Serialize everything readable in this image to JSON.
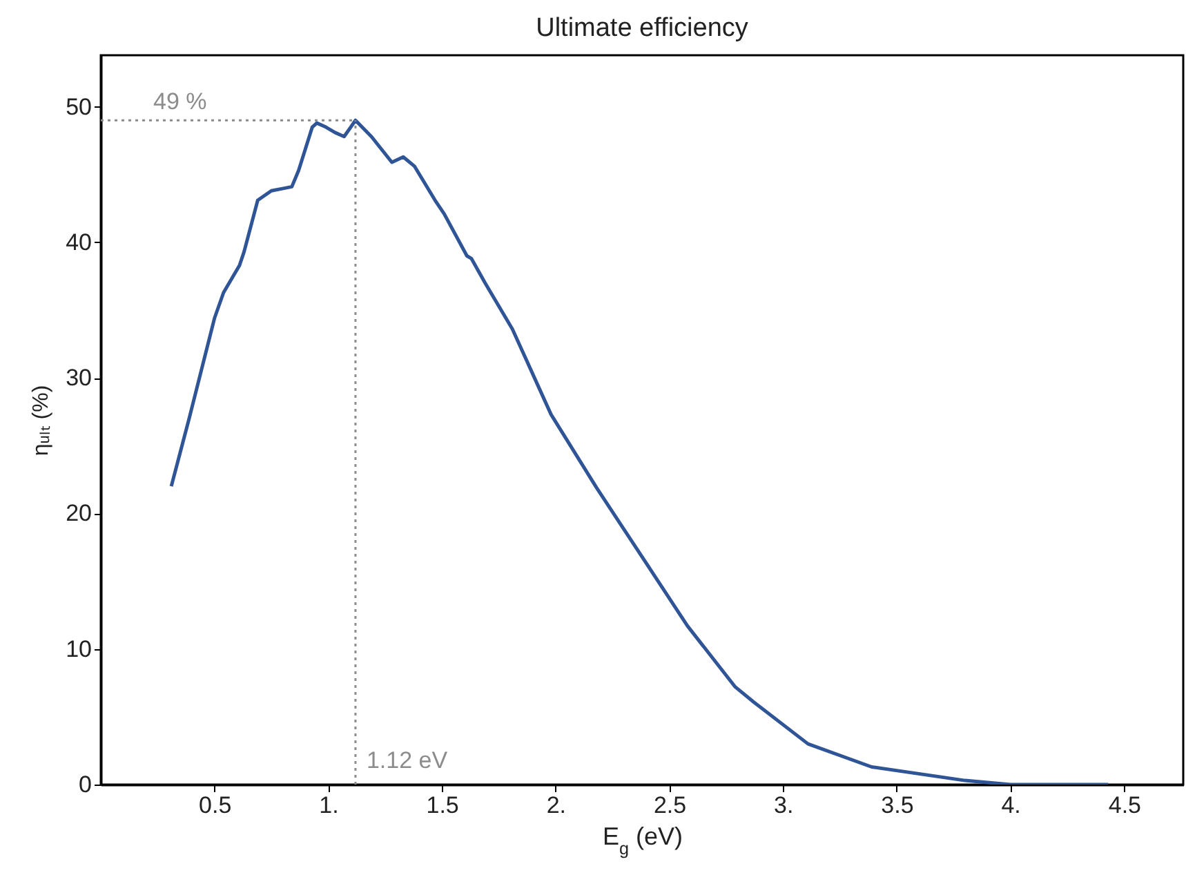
{
  "chart_data": {
    "type": "line",
    "title": "Ultimate efficiency",
    "xlabel": "E$_{g}$  (eV)",
    "ylabel": "ηᵤₗₜ (%)",
    "x": [
      0.31,
      0.39,
      0.5,
      0.54,
      0.61,
      0.63,
      0.69,
      0.75,
      0.81,
      0.84,
      0.87,
      0.93,
      0.95,
      0.99,
      1.03,
      1.07,
      1.12,
      1.19,
      1.28,
      1.33,
      1.38,
      1.47,
      1.51,
      1.61,
      1.63,
      1.69,
      1.81,
      1.98,
      2.18,
      2.38,
      2.58,
      2.79,
      2.87,
      3.11,
      3.39,
      3.8,
      4.0,
      4.43
    ],
    "series": [
      {
        "color": "#2f5597",
        "values": [
          22.0,
          27.1,
          34.4,
          36.3,
          38.3,
          39.3,
          43.1,
          43.8,
          44.0,
          44.1,
          45.3,
          48.5,
          48.8,
          48.5,
          48.1,
          47.8,
          49.0,
          47.8,
          45.9,
          46.3,
          45.6,
          43.1,
          42.1,
          39.0,
          38.8,
          37.0,
          33.6,
          27.3,
          21.9,
          16.8,
          11.7,
          7.2,
          6.1,
          3.0,
          1.3,
          0.3,
          0,
          0
        ]
      }
    ],
    "xlim": [
      0,
      4.76
    ],
    "ylim": [
      0,
      53.8
    ],
    "xticks": [
      0.5,
      {
        "value": 1,
        "label": "1."
      },
      1.5,
      {
        "value": 2,
        "label": "2."
      },
      2.5,
      {
        "value": 3,
        "label": "3."
      },
      3.5,
      {
        "value": 4,
        "label": "4."
      },
      4.5
    ],
    "yticks": [
      0,
      10,
      20,
      30,
      40,
      50
    ],
    "ref_lines": [
      {
        "axis": "y",
        "value": 49,
        "label": "49 %",
        "color": "#8c8c8c",
        "line_style": "dotted"
      },
      {
        "axis": "x",
        "value": 1.12,
        "label": "1.12 eV",
        "color": "#8c8c8c",
        "line_style": "dotted"
      }
    ],
    "grid": false,
    "marker": "none",
    "line_style": "solid"
  }
}
